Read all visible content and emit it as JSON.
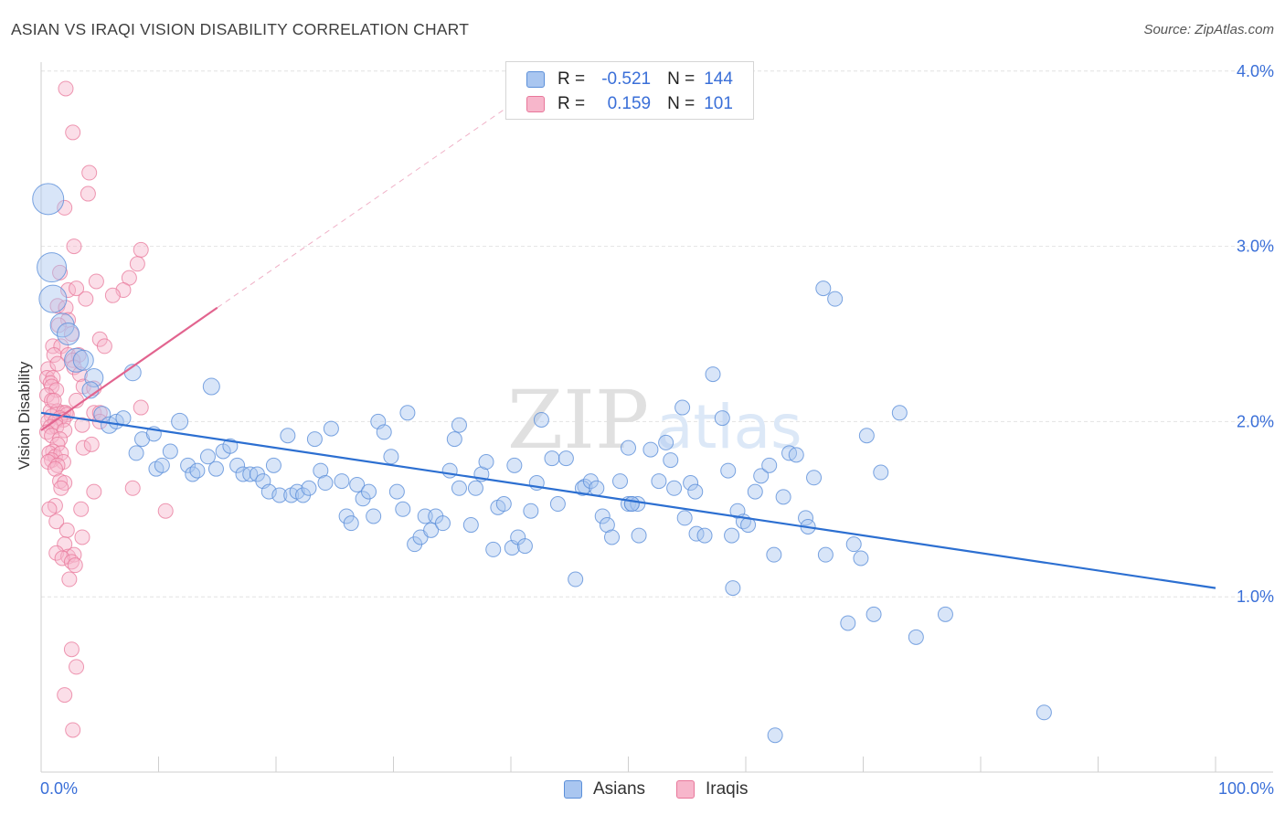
{
  "title": "ASIAN VS IRAQI VISION DISABILITY CORRELATION CHART",
  "source": "Source: ZipAtlas.com",
  "watermark": {
    "zip": "ZIP",
    "atlas": "atlas"
  },
  "legend": {
    "r_label": "R =",
    "n_label": "N =",
    "rows": [
      {
        "name": "Asians",
        "r": "-0.521",
        "n": "144"
      },
      {
        "name": "Iraqis",
        "r": "0.159",
        "n": "101"
      }
    ]
  },
  "colors": {
    "asian_fill": "#a9c6f0",
    "asian_stroke": "#5b8fd9",
    "asian_line": "#2c6fd1",
    "iraqi_fill": "#f7b6cb",
    "iraqi_stroke": "#e8779a",
    "iraqi_line": "#e2648f",
    "tick_text": "#3a6fd8",
    "grid": "#e2e2e2"
  },
  "chart_data": {
    "type": "scatter",
    "title": "ASIAN VS IRAQI VISION DISABILITY CORRELATION CHART",
    "xlabel": "",
    "ylabel": "Vision Disability",
    "xlim": [
      0,
      100
    ],
    "ylim": [
      0,
      4.2
    ],
    "x_tick_labels": [
      "0.0%",
      "100.0%"
    ],
    "y_ticks": [
      1.0,
      2.0,
      3.0,
      4.0
    ],
    "y_tick_labels": [
      "1.0%",
      "2.0%",
      "3.0%",
      "4.0%"
    ],
    "grid": true,
    "legend_position": "top-center",
    "series": [
      {
        "name": "Asians",
        "r": -0.521,
        "n": 144,
        "trend": {
          "x": [
            0,
            100
          ],
          "y": [
            2.05,
            1.05
          ]
        },
        "points": [
          [
            0.6,
            3.27,
            1.7
          ],
          [
            0.9,
            2.88,
            1.6
          ],
          [
            1.0,
            2.7,
            1.5
          ],
          [
            1.8,
            2.55,
            1.3
          ],
          [
            2.3,
            2.5,
            1.2
          ],
          [
            3.0,
            2.35,
            1.3
          ],
          [
            3.6,
            2.35,
            1.1
          ],
          [
            4.5,
            2.25,
            1.0
          ],
          [
            4.2,
            2.18,
            0.9
          ],
          [
            5.2,
            2.04,
            0.9
          ],
          [
            5.8,
            1.98,
            0.9
          ],
          [
            6.4,
            2.0,
            0.8
          ],
          [
            7.0,
            2.02,
            0.8
          ],
          [
            7.8,
            2.28,
            0.9
          ],
          [
            8.1,
            1.82,
            0.8
          ],
          [
            8.6,
            1.9,
            0.8
          ],
          [
            9.6,
            1.93,
            0.8
          ],
          [
            9.8,
            1.73,
            0.8
          ],
          [
            10.3,
            1.75,
            0.8
          ],
          [
            11.0,
            1.83,
            0.8
          ],
          [
            11.8,
            2.0,
            0.9
          ],
          [
            12.5,
            1.75,
            0.8
          ],
          [
            12.9,
            1.7,
            0.8
          ],
          [
            13.3,
            1.72,
            0.8
          ],
          [
            14.2,
            1.8,
            0.8
          ],
          [
            14.9,
            1.73,
            0.8
          ],
          [
            15.5,
            1.83,
            0.8
          ],
          [
            16.1,
            1.86,
            0.8
          ],
          [
            14.5,
            2.2,
            0.9
          ],
          [
            16.7,
            1.75,
            0.8
          ],
          [
            17.2,
            1.7,
            0.8
          ],
          [
            17.8,
            1.7,
            0.8
          ],
          [
            18.4,
            1.7,
            0.8
          ],
          [
            18.9,
            1.66,
            0.8
          ],
          [
            19.4,
            1.6,
            0.8
          ],
          [
            19.8,
            1.75,
            0.8
          ],
          [
            20.3,
            1.58,
            0.8
          ],
          [
            21.0,
            1.92,
            0.8
          ],
          [
            21.3,
            1.58,
            0.8
          ],
          [
            21.8,
            1.6,
            0.8
          ],
          [
            22.3,
            1.58,
            0.8
          ],
          [
            22.8,
            1.62,
            0.8
          ],
          [
            23.3,
            1.9,
            0.8
          ],
          [
            23.8,
            1.72,
            0.8
          ],
          [
            24.2,
            1.65,
            0.8
          ],
          [
            24.7,
            1.96,
            0.8
          ],
          [
            25.6,
            1.66,
            0.8
          ],
          [
            26.0,
            1.46,
            0.8
          ],
          [
            26.4,
            1.42,
            0.8
          ],
          [
            26.9,
            1.64,
            0.8
          ],
          [
            27.4,
            1.56,
            0.8
          ],
          [
            27.9,
            1.6,
            0.8
          ],
          [
            28.3,
            1.46,
            0.8
          ],
          [
            28.7,
            2.0,
            0.8
          ],
          [
            29.2,
            1.94,
            0.8
          ],
          [
            29.8,
            1.8,
            0.8
          ],
          [
            30.3,
            1.6,
            0.8
          ],
          [
            30.8,
            1.5,
            0.8
          ],
          [
            31.2,
            2.05,
            0.8
          ],
          [
            31.8,
            1.3,
            0.8
          ],
          [
            32.3,
            1.34,
            0.8
          ],
          [
            32.7,
            1.46,
            0.8
          ],
          [
            33.2,
            1.38,
            0.8
          ],
          [
            33.6,
            1.46,
            0.8
          ],
          [
            34.2,
            1.42,
            0.8
          ],
          [
            35.2,
            1.9,
            0.8
          ],
          [
            35.6,
            1.62,
            0.8
          ],
          [
            34.8,
            1.72,
            0.8
          ],
          [
            35.6,
            1.98,
            0.8
          ],
          [
            36.6,
            1.41,
            0.8
          ],
          [
            37.5,
            1.7,
            0.8
          ],
          [
            37.0,
            1.62,
            0.8
          ],
          [
            37.9,
            1.77,
            0.8
          ],
          [
            38.5,
            1.27,
            0.8
          ],
          [
            38.9,
            1.51,
            0.8
          ],
          [
            39.4,
            1.53,
            0.8
          ],
          [
            40.1,
            1.28,
            0.8
          ],
          [
            40.6,
            1.34,
            0.8
          ],
          [
            40.3,
            1.75,
            0.8
          ],
          [
            41.2,
            1.29,
            0.8
          ],
          [
            41.7,
            1.49,
            0.8
          ],
          [
            42.2,
            1.65,
            0.8
          ],
          [
            42.6,
            2.01,
            0.8
          ],
          [
            43.5,
            1.79,
            0.8
          ],
          [
            44.0,
            1.53,
            0.8
          ],
          [
            44.7,
            1.79,
            0.8
          ],
          [
            45.5,
            1.1,
            0.8
          ],
          [
            46.3,
            1.63,
            0.8
          ],
          [
            46.1,
            1.62,
            0.8
          ],
          [
            46.8,
            1.66,
            0.8
          ],
          [
            47.3,
            1.62,
            0.8
          ],
          [
            47.8,
            1.46,
            0.8
          ],
          [
            48.2,
            1.41,
            0.8
          ],
          [
            48.6,
            1.34,
            0.8
          ],
          [
            49.3,
            1.66,
            0.8
          ],
          [
            50.0,
            1.53,
            0.8
          ],
          [
            50.3,
            1.53,
            0.8
          ],
          [
            50.8,
            1.53,
            0.8
          ],
          [
            50.3,
            1.53,
            0.8
          ],
          [
            50.0,
            1.85,
            0.8
          ],
          [
            50.9,
            1.35,
            0.8
          ],
          [
            51.9,
            1.84,
            0.8
          ],
          [
            52.6,
            1.66,
            0.8
          ],
          [
            53.2,
            1.88,
            0.8
          ],
          [
            53.6,
            1.78,
            0.8
          ],
          [
            53.9,
            1.62,
            0.8
          ],
          [
            54.8,
            1.45,
            0.8
          ],
          [
            55.3,
            1.65,
            0.8
          ],
          [
            55.7,
            1.6,
            0.8
          ],
          [
            54.6,
            2.08,
            0.8
          ],
          [
            55.8,
            1.36,
            0.8
          ],
          [
            56.5,
            1.35,
            0.8
          ],
          [
            57.2,
            2.27,
            0.8
          ],
          [
            58.0,
            2.02,
            0.8
          ],
          [
            58.5,
            1.72,
            0.8
          ],
          [
            58.8,
            1.35,
            0.8
          ],
          [
            58.9,
            1.05,
            0.8
          ],
          [
            59.3,
            1.49,
            0.8
          ],
          [
            59.8,
            1.43,
            0.8
          ],
          [
            60.2,
            1.41,
            0.8
          ],
          [
            60.8,
            1.6,
            0.8
          ],
          [
            61.3,
            1.69,
            0.8
          ],
          [
            62.0,
            1.75,
            0.8
          ],
          [
            62.4,
            1.24,
            0.8
          ],
          [
            62.5,
            0.21,
            0.8
          ],
          [
            63.2,
            1.57,
            0.8
          ],
          [
            63.7,
            1.82,
            0.8
          ],
          [
            64.3,
            1.81,
            0.8
          ],
          [
            65.1,
            1.45,
            0.8
          ],
          [
            65.3,
            1.4,
            0.8
          ],
          [
            65.8,
            1.68,
            0.8
          ],
          [
            66.8,
            1.24,
            0.8
          ],
          [
            66.6,
            2.76,
            0.8
          ],
          [
            67.6,
            2.7,
            0.8
          ],
          [
            68.7,
            0.85,
            0.8
          ],
          [
            69.2,
            1.3,
            0.8
          ],
          [
            69.8,
            1.22,
            0.8
          ],
          [
            70.3,
            1.92,
            0.8
          ],
          [
            70.9,
            0.9,
            0.8
          ],
          [
            71.5,
            1.71,
            0.8
          ],
          [
            73.1,
            2.05,
            0.8
          ],
          [
            74.5,
            0.77,
            0.8
          ],
          [
            77.0,
            0.9,
            0.8
          ],
          [
            85.4,
            0.34,
            0.8
          ]
        ]
      },
      {
        "name": "Iraqis",
        "r": 0.159,
        "n": 101,
        "trend": {
          "x": [
            0,
            15
          ],
          "y": [
            1.95,
            2.65
          ]
        },
        "trend_extension": {
          "x": [
            15,
            42
          ],
          "y": [
            2.65,
            3.9
          ]
        },
        "points": [
          [
            2.1,
            3.9
          ],
          [
            2.7,
            3.65
          ],
          [
            4.1,
            3.42
          ],
          [
            4.0,
            3.3
          ],
          [
            2.0,
            3.22
          ],
          [
            2.8,
            3.0
          ],
          [
            8.5,
            2.98
          ],
          [
            8.2,
            2.9
          ],
          [
            1.6,
            2.85
          ],
          [
            4.7,
            2.8
          ],
          [
            7.5,
            2.82
          ],
          [
            2.3,
            2.75
          ],
          [
            3.0,
            2.76
          ],
          [
            7.0,
            2.75
          ],
          [
            6.1,
            2.72
          ],
          [
            3.8,
            2.7
          ],
          [
            1.4,
            2.66
          ],
          [
            2.1,
            2.65
          ],
          [
            2.3,
            2.58
          ],
          [
            1.5,
            2.55
          ],
          [
            2.6,
            2.5
          ],
          [
            5.0,
            2.47
          ],
          [
            1.0,
            2.43
          ],
          [
            5.4,
            2.43
          ],
          [
            1.7,
            2.43
          ],
          [
            1.1,
            2.38
          ],
          [
            2.3,
            2.38
          ],
          [
            3.2,
            2.38
          ],
          [
            2.7,
            2.35
          ],
          [
            0.6,
            2.3
          ],
          [
            1.4,
            2.33
          ],
          [
            2.8,
            2.31
          ],
          [
            3.3,
            2.27
          ],
          [
            0.5,
            2.25
          ],
          [
            1.0,
            2.25
          ],
          [
            0.8,
            2.22
          ],
          [
            3.6,
            2.2
          ],
          [
            4.5,
            2.19
          ],
          [
            0.9,
            2.2
          ],
          [
            1.3,
            2.18
          ],
          [
            0.5,
            2.15
          ],
          [
            0.9,
            2.12
          ],
          [
            3.0,
            2.12
          ],
          [
            8.5,
            2.08
          ],
          [
            0.8,
            2.06
          ],
          [
            1.4,
            2.06
          ],
          [
            1.9,
            2.05
          ],
          [
            2.1,
            2.05
          ],
          [
            2.2,
            2.04
          ],
          [
            4.5,
            2.05
          ],
          [
            5.0,
            2.05
          ],
          [
            0.9,
            2.03
          ],
          [
            1.6,
            2.02
          ],
          [
            1.9,
            2.01
          ],
          [
            0.6,
            2.0
          ],
          [
            1.2,
            2.0
          ],
          [
            5.0,
            2.0
          ],
          [
            3.5,
            1.98
          ],
          [
            0.8,
            1.97
          ],
          [
            1.3,
            1.97
          ],
          [
            2.0,
            1.95
          ],
          [
            0.5,
            1.94
          ],
          [
            0.9,
            1.92
          ],
          [
            1.6,
            1.9
          ],
          [
            1.4,
            1.87
          ],
          [
            3.6,
            1.85
          ],
          [
            4.3,
            1.87
          ],
          [
            1.0,
            1.83
          ],
          [
            0.7,
            1.82
          ],
          [
            1.2,
            1.8
          ],
          [
            1.7,
            1.82
          ],
          [
            0.9,
            1.78
          ],
          [
            0.6,
            1.77
          ],
          [
            1.9,
            1.77
          ],
          [
            1.4,
            1.75
          ],
          [
            1.2,
            1.73
          ],
          [
            1.6,
            1.66
          ],
          [
            2.0,
            1.65
          ],
          [
            1.7,
            1.62
          ],
          [
            7.8,
            1.62
          ],
          [
            4.5,
            1.6
          ],
          [
            1.2,
            1.52
          ],
          [
            3.4,
            1.5
          ],
          [
            0.7,
            1.5
          ],
          [
            10.6,
            1.49
          ],
          [
            1.3,
            1.43
          ],
          [
            2.2,
            1.38
          ],
          [
            3.5,
            1.34
          ],
          [
            2.0,
            1.3
          ],
          [
            1.3,
            1.25
          ],
          [
            2.3,
            1.23
          ],
          [
            2.8,
            1.24
          ],
          [
            1.8,
            1.22
          ],
          [
            2.6,
            1.2
          ],
          [
            2.9,
            1.18
          ],
          [
            2.4,
            1.1
          ],
          [
            2.6,
            0.7
          ],
          [
            3.0,
            0.6
          ],
          [
            2.0,
            0.44
          ],
          [
            2.7,
            0.24
          ],
          [
            1.1,
            2.12
          ]
        ]
      }
    ]
  }
}
